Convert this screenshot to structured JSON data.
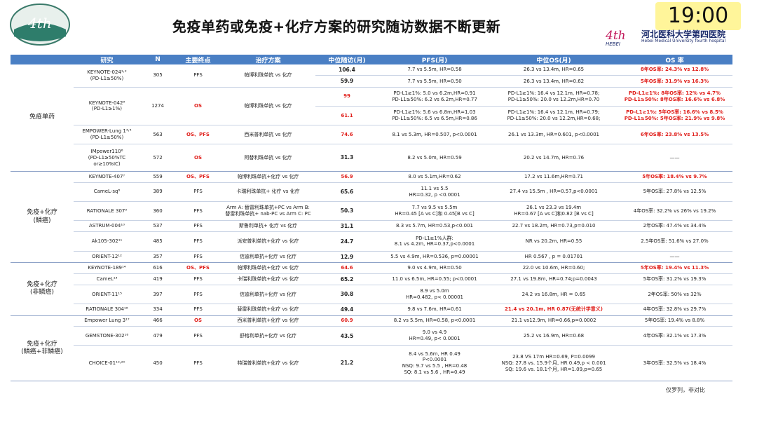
{
  "header": {
    "title": "免疫单药或免疫+化疗方案的研究随访数据不断更新",
    "clock": "19:00",
    "hospital": "河北医科大学第四医院",
    "hospital_en": "Hebei Medical University fourth hospital"
  },
  "table": {
    "columns": [
      "研究",
      "N",
      "主要终点",
      "治疗方案",
      "中位随访(月)",
      "PFS(月)",
      "中位OS(月)",
      "OS 率"
    ],
    "groups": [
      {
        "name": "免疫单药",
        "studies": [
          {
            "study": "KEYNOTE-024¹˒²\n(PD-L1≥50%)",
            "n": "305",
            "endpoint": "PFS",
            "regimen": "帕博利珠单抗 vs 化疗",
            "followups": [
              {
                "median": "106.4",
                "pfs": "7.7 vs 5.5m, HR=0.58",
                "os": "26.3 vs 13.4m, HR=0.65",
                "os_rate": "8年OS率: 24.3% vs 12.8%"
              },
              {
                "median": "59.9",
                "pfs": "7.7 vs 5.5m, HR=0.50",
                "os": "26.3 vs 13.4m, HR=0.62",
                "os_rate": "5年OS率: 31.9% vs 16.3%"
              }
            ]
          },
          {
            "study": "KEYNOTE-042³\n(PD-L1≥1%)",
            "n": "1274",
            "endpoint": "OS",
            "regimen": "帕博利珠单抗 vs 化疗",
            "followups": [
              {
                "median": "99",
                "pfs": "PD-L1≥1%: 5.0 vs 6.2m,HR=0.91\nPD-L1≥50%: 6.2 vs 6.2m,HR=0.77",
                "os": "PD-L1≥1%: 16.4 vs 12.1m, HR=0.78;\nPD-L1≥50%: 20.0 vs 12.2m,HR=0.70",
                "os_rate": "PD-L1≥1%: 8年OS率: 12% vs 4.7%\nPD-L1≥50%: 8年OS率: 16.6% vs 6.8%"
              },
              {
                "median": "61.1",
                "pfs": "PD-L1≥1%: 5.6 vs 6.8m,HR=1.03\nPD-L1≥50%: 6.5 vs 6.5m,HR=0.86",
                "os": "PD-L1≥1%: 16.4 vs 12.1m, HR=0.79;\nPD-L1≥50%: 20.0 vs 12.2m,HR=0.68;",
                "os_rate": "PD-L1≥1%: 5年OS率: 16.6% vs 8.5%\nPD-L1≥50%: 5年OS率: 21.9% vs 9.8%"
              }
            ]
          },
          {
            "study": "EMPOWER-Lung 1⁴˒⁵\n(PD-L1≥50%)",
            "n": "563",
            "endpoint": "OS、PFS",
            "regimen": "西米普利单抗 vs 化疗",
            "followups": [
              {
                "median": "74.6",
                "pfs": "8.1 vs 5.3m, HR=0.507, p<0.0001",
                "os": "26.1 vs 13.3m, HR=0.601, p<0.0001",
                "os_rate": "6年OS率: 23.8% vs 13.5%"
              }
            ]
          },
          {
            "study": "IMpower110⁶\n(PD-L1≥50%TC or≥10%IC)",
            "n": "572",
            "endpoint": "OS",
            "regimen": "阿替利珠单抗 vs 化疗",
            "followups": [
              {
                "median": "31.3",
                "pfs": "8.2 vs 5.0m, HR=0.59",
                "os": "20.2 vs 14.7m, HR=0.76",
                "os_rate": "——"
              }
            ]
          }
        ]
      },
      {
        "name": "免疫+化疗\n(鳞癌)",
        "studies": [
          {
            "study": "KEYNOTE-407⁷",
            "n": "559",
            "endpoint": "OS、PFS",
            "regimen": "帕博利珠单抗+化疗 vs 化疗",
            "followups": [
              {
                "median": "56.9",
                "pfs": "8.0 vs 5.1m,HR=0.62",
                "os": "17.2 vs 11.6m,HR=0.71",
                "os_rate": "5年OS率: 18.4% vs 9.7%"
              }
            ]
          },
          {
            "study": "CameL-sq⁸",
            "n": "389",
            "endpoint": "PFS",
            "regimen": "卡瑞利珠单抗+ 化疗 vs 化疗",
            "followups": [
              {
                "median": "65.6",
                "pfs": "11.1 vs 5.5\nHR=0.32, p <0.0001",
                "os": "27.4 vs 15.5m , HR=0.57,p<0.0001",
                "os_rate": "5年OS率: 27.8% vs 12.5%"
              }
            ]
          },
          {
            "study": "RATIONALE 307⁹",
            "n": "360",
            "endpoint": "PFS",
            "regimen": "Arm A: 替雷利珠单抗+PC vs Arm B:\n替雷利珠单抗+ nab-PC vs Arm C: PC",
            "followups": [
              {
                "median": "50.3",
                "pfs": "7.7 vs 9.5 vs 5.5m\nHR=0.45 [A vs C]和 0.45[B vs C]",
                "os": "26.1 vs 23.3 vs 19.4m\nHR=0.67 [A vs C]和0.82 [B vs C]",
                "os_rate": "4年OS率: 32.2% vs 26% vs 19.2%"
              }
            ]
          },
          {
            "study": "ASTRUM-004¹⁰",
            "n": "537",
            "endpoint": "PFS",
            "regimen": "斯鲁利单抗+ 化疗 vs 化疗",
            "followups": [
              {
                "median": "31.1",
                "pfs": "8.3 vs 5.7m, HR=0.53,p<0.001",
                "os": "22.7 vs 18.2m, HR=0.73,p=0.010",
                "os_rate": "2年OS率: 47.4% vs 34.4%"
              }
            ]
          },
          {
            "study": "Ak105-302¹¹",
            "n": "485",
            "endpoint": "PFS",
            "regimen": "派安普利单抗+化疗 vs 化疗",
            "followups": [
              {
                "median": "24.7",
                "pfs": "PD-L1≥1%人群:\n8.1 vs 4.2m, HR=0.37,p<0.0001",
                "os": "NR vs 20.2m, HR=0.55",
                "os_rate": "2.5年OS率: 51.6% vs 27.0%"
              }
            ]
          },
          {
            "study": "ORIENT-12¹²",
            "n": "357",
            "endpoint": "PFS",
            "regimen": "信迪利单抗+化疗 vs 化疗",
            "followups": [
              {
                "median": "12.9",
                "pfs": "5.5 vs 4.9m, HR=0.536, p=0.00001",
                "os": "HR 0.567 , p = 0.01701",
                "os_rate": "——"
              }
            ]
          }
        ]
      },
      {
        "name": "免疫+化疗\n(非鳞癌)",
        "studies": [
          {
            "study": "KEYNOTE-189¹⁴",
            "n": "616",
            "endpoint": "OS、PFS",
            "regimen": "帕博利珠单抗+化疗 vs 化疗",
            "followups": [
              {
                "median": "64.6",
                "pfs": "9.0 vs 4.9m, HR=0.50",
                "os": "22.0 vs 10.6m, HR=0.60;",
                "os_rate": "5年OS率: 19.4% vs 11.3%"
              }
            ]
          },
          {
            "study": "CameL¹³",
            "n": "419",
            "endpoint": "PFS",
            "regimen": "卡瑞利珠单抗+化疗 vs 化疗",
            "followups": [
              {
                "median": "65.2",
                "pfs": "11.0 vs 6.5m, HR=0.55; p<0.0001",
                "os": "27.1 vs 19.8m, HR=0.74;p=0.0043",
                "os_rate": "5年OS率: 31.2% vs 19.3%"
              }
            ]
          },
          {
            "study": "ORIENT-11¹⁵",
            "n": "397",
            "endpoint": "PFS",
            "regimen": "信迪利单抗+化疗 vs 化疗",
            "followups": [
              {
                "median": "30.8",
                "pfs": "8.9 vs 5.0m\nHR=0.482, p< 0.00001",
                "os": "24.2 vs 16.8m, HR = 0.65",
                "os_rate": "2年OS率: 50% vs 32%"
              }
            ]
          },
          {
            "study": "RATIONALE 304¹⁶",
            "n": "334",
            "endpoint": "PFS",
            "regimen": "替雷利珠单抗+化疗 vs 化疗",
            "followups": [
              {
                "median": "49.4",
                "pfs": "9.8 vs 7.6m, HR=0.61",
                "os": "21.4 vs 20.1m, HR 0.87(无统计学意义)",
                "os_rate": "4年OS率: 32.8% vs 29.7%"
              }
            ]
          }
        ]
      },
      {
        "name": "免疫+化疗\n(鳞癌+非鳞癌)",
        "studies": [
          {
            "study": "Empower Lung 3¹⁷",
            "n": "466",
            "endpoint": "OS",
            "regimen": "西米普利单抗+化疗 vs 化疗",
            "followups": [
              {
                "median": "60.9",
                "pfs": "8.2 vs 5.5m, HR=0.58, p<0.0001",
                "os": "21.1 vs12.9m, HR=0.66,p=0.0002",
                "os_rate": "5年OS率: 19.4% vs 8.8%"
              }
            ]
          },
          {
            "study": "GEMSTONE-302¹⁸",
            "n": "479",
            "endpoint": "PFS",
            "regimen": "舒格利单抗+化疗 vs 化疗",
            "followups": [
              {
                "median": "43.5",
                "pfs": "9.0 vs 4.9\nHR=0.49, p< 0.0001",
                "os": "25.2 vs 16.9m, HR=0.68",
                "os_rate": "4年OS率: 32.1% vs 17.3%"
              }
            ]
          },
          {
            "study": "CHOICE-01¹⁹˒²⁰",
            "n": "450",
            "endpoint": "PFS",
            "regimen": "特瑞普利单抗+化疗 vs 化疗",
            "followups": [
              {
                "median": "21.2",
                "pfs": "8.4 vs 5.6m, HR 0.49\nP<0.0001\nNSQ: 9.7 vs 5.5 , HR=0.48\nSQ: 8.1 vs 5.6 , HR=0.49",
                "os": "23.8 VS 17m HR=0.69, P=0.0099\nNSQ: 27.8 vs. 15.9个月, HR 0.49,p < 0.001\nSQ: 19.6 vs. 18.1个月, HR=1.09,p=0.65",
                "os_rate": "3年OS率: 32.5% vs 18.4%"
              }
            ]
          }
        ]
      }
    ]
  },
  "note": "仅罗列，非对比"
}
